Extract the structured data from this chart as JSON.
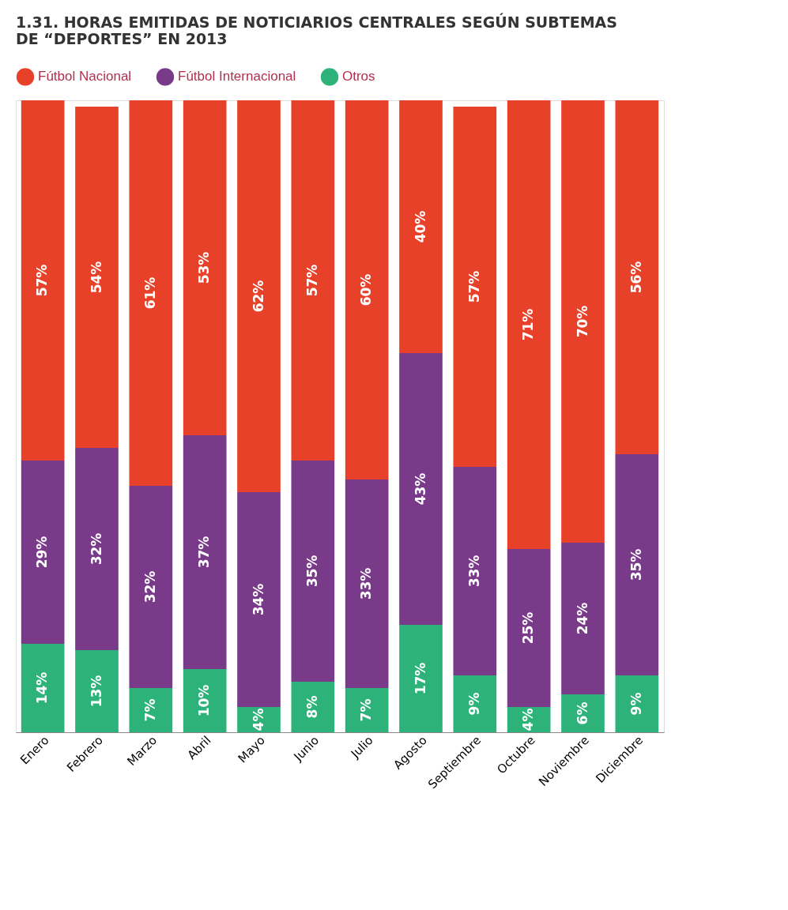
{
  "chart_data": {
    "type": "bar",
    "title": "1.31. HORAS EMITIDAS DE NOTICIARIOS CENTRALES SEGÚN SUBTEMAS DE “DEPORTES” EN 2013",
    "categories": [
      "Enero",
      "Febrero",
      "Marzo",
      "Abril",
      "Mayo",
      "Junio",
      "Julio",
      "Agosto",
      "Septiembre",
      "Octubre",
      "Noviembre",
      "Diciembre"
    ],
    "stacked": true,
    "tick_labels": "x",
    "legend": "top left",
    "grid": false,
    "series": [
      {
        "name": "Otros",
        "color": "#2db37a",
        "values": [
          14,
          13,
          7,
          10,
          4,
          8,
          7,
          17,
          9,
          4,
          6,
          9
        ],
        "value_labels": [
          "14%",
          "13%",
          "7%",
          "10%",
          "4%",
          "8%",
          "7%",
          "17%",
          "9%",
          "4%",
          "6%",
          "9%"
        ]
      },
      {
        "name": "Fútbol Internacional",
        "color": "#7a3a8a",
        "values": [
          29,
          32,
          32,
          37,
          34,
          35,
          33,
          43,
          33,
          25,
          24,
          35
        ],
        "value_labels": [
          "29%",
          "32%",
          "32%",
          "37%",
          "34%",
          "35%",
          "33%",
          "43%",
          "33%",
          "25%",
          "24%",
          "35%"
        ]
      },
      {
        "name": "Fútbol Nacional",
        "color": "#e8412a",
        "values": [
          57,
          54,
          61,
          53,
          62,
          57,
          60,
          40,
          57,
          71,
          70,
          56
        ],
        "value_labels": [
          "57%",
          "54%",
          "61%",
          "53%",
          "62%",
          "57%",
          "60%",
          "40%",
          "57%",
          "71%",
          "70%",
          "56%"
        ]
      }
    ]
  }
}
